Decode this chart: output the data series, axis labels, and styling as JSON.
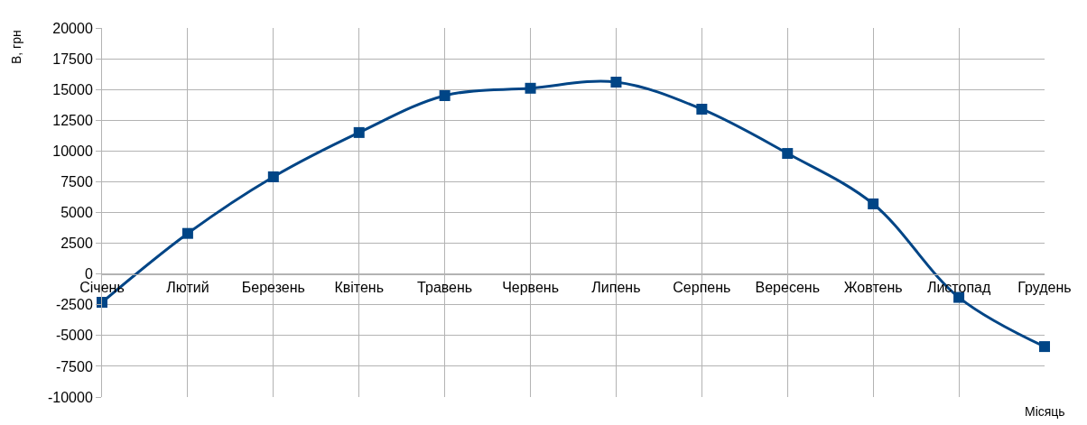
{
  "chart_data": {
    "type": "line",
    "xlabel": "Місяць",
    "ylabel": "В, грн",
    "categories": [
      "Січень",
      "Лютий",
      "Березень",
      "Квітень",
      "Травень",
      "Червень",
      "Липень",
      "Серпень",
      "Вересень",
      "Жовтень",
      "Листопад",
      "Грудень"
    ],
    "series": [
      {
        "color": "#004586",
        "values": [
          -2300,
          3300,
          7900,
          11500,
          14500,
          15100,
          15600,
          13400,
          9800,
          5700,
          -1900,
          -5900
        ]
      }
    ],
    "ylim": [
      -10000,
      20000
    ],
    "yticks": [
      -10000,
      -7500,
      -5000,
      -2500,
      0,
      2500,
      5000,
      7500,
      10000,
      12500,
      15000,
      17500,
      20000
    ],
    "grid": true,
    "marker": "square",
    "line_style": "solid",
    "legend": false
  }
}
